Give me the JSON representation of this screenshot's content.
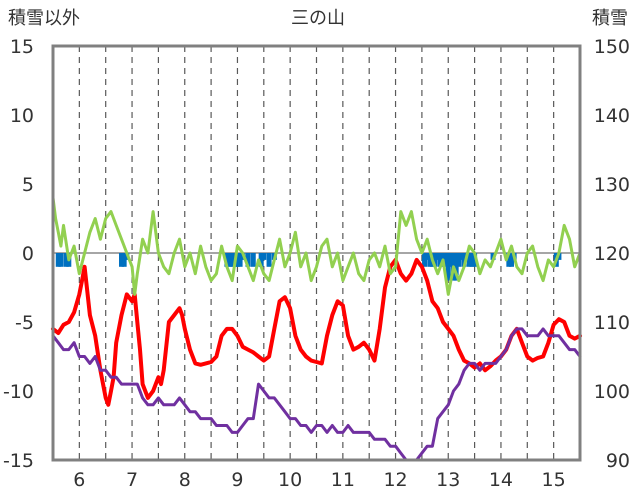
{
  "chart_data": {
    "type": "line",
    "title": "三の山",
    "ylabel_left": "積雪以外",
    "ylabel_right": "積雪",
    "ylim_left": [
      -15,
      15
    ],
    "ylim_right": [
      90,
      150
    ],
    "yticks_left": [
      15,
      10,
      5,
      0,
      -5,
      -10,
      -15
    ],
    "yticks_right": [
      150,
      140,
      130,
      120,
      110,
      100,
      90
    ],
    "xlim": [
      5.5,
      15.5
    ],
    "xticks": [
      6,
      7,
      8,
      9,
      10,
      11,
      12,
      13,
      14,
      15
    ],
    "grid": "vertical dashed",
    "series": [
      {
        "color": "#ff0000",
        "axis": "left",
        "x": [
          5.5,
          5.6,
          5.7,
          5.8,
          5.9,
          6.0,
          6.05,
          6.1,
          6.2,
          6.3,
          6.4,
          6.5,
          6.55,
          6.6,
          6.65,
          6.7,
          6.8,
          6.9,
          7.0,
          7.05,
          7.1,
          7.15,
          7.2,
          7.3,
          7.4,
          7.5,
          7.55,
          7.6,
          7.7,
          7.8,
          7.9,
          7.95,
          8.0,
          8.1,
          8.2,
          8.3,
          8.4,
          8.5,
          8.6,
          8.7,
          8.8,
          8.9,
          9.0,
          9.1,
          9.2,
          9.3,
          9.4,
          9.5,
          9.6,
          9.7,
          9.8,
          9.9,
          10.0,
          10.1,
          10.2,
          10.3,
          10.4,
          10.5,
          10.6,
          10.7,
          10.8,
          10.9,
          11.0,
          11.1,
          11.2,
          11.3,
          11.4,
          11.5,
          11.6,
          11.7,
          11.8,
          11.9,
          12.0,
          12.1,
          12.2,
          12.3,
          12.4,
          12.5,
          12.6,
          12.7,
          12.8,
          12.9,
          13.0,
          13.1,
          13.2,
          13.3,
          13.4,
          13.5,
          13.6,
          13.7,
          13.8,
          13.9,
          14.0,
          14.1,
          14.2,
          14.3,
          14.4,
          14.5,
          14.6,
          14.7,
          14.8,
          14.9,
          15.0,
          15.1,
          15.2,
          15.3,
          15.4,
          15.5
        ],
        "values": [
          -5.5,
          -5.8,
          -5.2,
          -5.0,
          -4.3,
          -3.0,
          -2.0,
          -1.0,
          -4.5,
          -6.0,
          -8.5,
          -10.5,
          -11.0,
          -10.0,
          -9.0,
          -6.5,
          -4.5,
          -3.0,
          -3.5,
          -3.0,
          -5.0,
          -7.0,
          -9.5,
          -10.5,
          -10.0,
          -9.0,
          -9.5,
          -8.5,
          -5.0,
          -4.5,
          -4.0,
          -4.5,
          -5.5,
          -7.0,
          -8.0,
          -8.1,
          -8.0,
          -7.9,
          -7.5,
          -6.0,
          -5.5,
          -5.5,
          -6.0,
          -6.8,
          -7.0,
          -7.2,
          -7.5,
          -7.8,
          -7.5,
          -5.5,
          -3.5,
          -3.2,
          -4.0,
          -6.0,
          -7.0,
          -7.5,
          -7.8,
          -7.9,
          -8.0,
          -6.0,
          -4.5,
          -3.5,
          -3.8,
          -6.0,
          -7.0,
          -6.8,
          -6.5,
          -7.0,
          -7.8,
          -5.5,
          -2.5,
          -1.0,
          -0.5,
          -1.5,
          -2.0,
          -1.5,
          -0.5,
          -1.0,
          -2.0,
          -3.5,
          -4.0,
          -5.0,
          -5.5,
          -6.0,
          -7.0,
          -7.8,
          -8.0,
          -8.3,
          -8.0,
          -8.5,
          -8.2,
          -7.8,
          -7.5,
          -7.0,
          -6.0,
          -5.5,
          -6.5,
          -7.5,
          -7.8,
          -7.6,
          -7.5,
          -6.5,
          -5.2,
          -4.8,
          -5.0,
          -6.0,
          -6.2,
          -6.0
        ]
      },
      {
        "color": "#92d050",
        "axis": "left",
        "x": [
          5.5,
          5.55,
          5.6,
          5.65,
          5.7,
          5.8,
          5.9,
          6.0,
          6.1,
          6.2,
          6.3,
          6.4,
          6.5,
          6.6,
          6.7,
          6.8,
          6.9,
          7.0,
          7.05,
          7.1,
          7.2,
          7.3,
          7.4,
          7.5,
          7.6,
          7.7,
          7.8,
          7.9,
          8.0,
          8.1,
          8.2,
          8.3,
          8.4,
          8.5,
          8.6,
          8.7,
          8.8,
          8.9,
          9.0,
          9.1,
          9.2,
          9.3,
          9.4,
          9.5,
          9.6,
          9.7,
          9.8,
          9.9,
          10.0,
          10.1,
          10.2,
          10.3,
          10.4,
          10.5,
          10.6,
          10.7,
          10.8,
          10.9,
          11.0,
          11.1,
          11.2,
          11.3,
          11.4,
          11.5,
          11.6,
          11.7,
          11.8,
          11.9,
          12.0,
          12.1,
          12.2,
          12.3,
          12.4,
          12.5,
          12.6,
          12.7,
          12.8,
          12.9,
          13.0,
          13.1,
          13.2,
          13.3,
          13.4,
          13.5,
          13.6,
          13.7,
          13.8,
          13.9,
          14.0,
          14.1,
          14.2,
          14.3,
          14.4,
          14.5,
          14.6,
          14.7,
          14.8,
          14.9,
          15.0,
          15.1,
          15.2,
          15.3,
          15.4,
          15.5
        ],
        "values": [
          4.0,
          2.5,
          1.5,
          0.5,
          2.0,
          -0.5,
          0.5,
          -1.5,
          0.0,
          1.5,
          2.5,
          1.0,
          2.5,
          3.0,
          2.0,
          1.0,
          0.0,
          -1.0,
          -3.0,
          -1.5,
          1.0,
          0.0,
          3.0,
          0.0,
          -1.0,
          -1.5,
          0.0,
          1.0,
          -1.0,
          0.0,
          -1.5,
          0.5,
          -1.0,
          -2.0,
          -1.5,
          0.5,
          -1.0,
          -2.0,
          0.5,
          0.0,
          -1.0,
          -2.0,
          -0.5,
          -1.5,
          -2.0,
          -0.5,
          1.0,
          -1.0,
          0.0,
          1.5,
          -1.0,
          0.0,
          -2.0,
          -1.0,
          0.5,
          1.0,
          -1.0,
          0.0,
          -2.0,
          -1.0,
          0.0,
          -1.5,
          -2.0,
          -0.5,
          0.0,
          -1.0,
          0.5,
          -1.5,
          -1.0,
          3.0,
          2.0,
          3.0,
          1.0,
          0.0,
          1.0,
          -0.5,
          -1.5,
          -0.5,
          -3.0,
          -1.0,
          -2.0,
          -1.0,
          0.5,
          0.0,
          -1.5,
          -0.5,
          -1.0,
          0.0,
          1.0,
          -0.5,
          0.5,
          -1.0,
          -1.5,
          0.0,
          0.5,
          -1.0,
          -2.0,
          -0.5,
          -1.0,
          0.0,
          2.0,
          1.0,
          -1.0,
          0.0
        ]
      },
      {
        "color": "#7030a0",
        "axis": "right",
        "x": [
          5.5,
          5.6,
          5.7,
          5.8,
          5.9,
          6.0,
          6.1,
          6.2,
          6.3,
          6.4,
          6.5,
          6.6,
          6.7,
          6.8,
          6.9,
          7.0,
          7.1,
          7.2,
          7.3,
          7.4,
          7.5,
          7.6,
          7.7,
          7.8,
          7.9,
          8.0,
          8.1,
          8.2,
          8.3,
          8.4,
          8.5,
          8.6,
          8.7,
          8.8,
          8.9,
          9.0,
          9.1,
          9.2,
          9.3,
          9.4,
          9.5,
          9.6,
          9.7,
          9.8,
          9.9,
          10.0,
          10.1,
          10.2,
          10.3,
          10.4,
          10.5,
          10.6,
          10.7,
          10.8,
          10.9,
          11.0,
          11.1,
          11.2,
          11.3,
          11.4,
          11.5,
          11.6,
          11.7,
          11.8,
          11.9,
          12.0,
          12.1,
          12.2,
          12.3,
          12.4,
          12.5,
          12.6,
          12.7,
          12.8,
          12.9,
          13.0,
          13.1,
          13.2,
          13.3,
          13.4,
          13.5,
          13.6,
          13.7,
          13.8,
          13.9,
          14.0,
          14.1,
          14.2,
          14.3,
          14.4,
          14.5,
          14.6,
          14.7,
          14.8,
          14.9,
          15.0,
          15.1,
          15.2,
          15.3,
          15.4,
          15.5
        ],
        "values": [
          108,
          107,
          106,
          106,
          107,
          105,
          105,
          104,
          105,
          103,
          103,
          102,
          102,
          101,
          101,
          101,
          101,
          99,
          98,
          98,
          99,
          98,
          98,
          98,
          99,
          98,
          97,
          97,
          96,
          96,
          96,
          95,
          95,
          95,
          94,
          94,
          95,
          96,
          96,
          101,
          100,
          99,
          99,
          98,
          97,
          96,
          96,
          95,
          95,
          94,
          95,
          95,
          94,
          95,
          94,
          94,
          95,
          94,
          94,
          94,
          94,
          93,
          93,
          93,
          92,
          92,
          91,
          90,
          90,
          90,
          91,
          92,
          92,
          96,
          97,
          98,
          100,
          101,
          103,
          104,
          104,
          103,
          104,
          104,
          104,
          105,
          106,
          108,
          109,
          109,
          108,
          108,
          108,
          109,
          108,
          108,
          108,
          107,
          106,
          106,
          105
        ]
      },
      {
        "type": "bar",
        "color": "#0070c0",
        "axis": "left",
        "x": [
          5.6,
          5.65,
          5.75,
          5.8,
          6.8,
          6.85,
          6.9,
          8.8,
          8.85,
          8.9,
          8.95,
          9.0,
          9.05,
          9.1,
          9.2,
          9.3,
          9.45,
          9.5,
          9.6,
          9.7,
          12.55,
          12.6,
          12.65,
          12.7,
          12.75,
          12.8,
          12.85,
          12.9,
          12.95,
          13.0,
          13.05,
          13.1,
          13.15,
          13.2,
          13.25,
          13.3,
          13.4,
          13.45,
          13.5,
          13.85,
          14.15,
          14.2,
          14.25,
          15.05,
          15.1
        ],
        "values": [
          -1.0,
          -1.0,
          -1.0,
          -1.0,
          -1.0,
          -1.0,
          -0.5,
          -1.0,
          -1.0,
          -1.0,
          -1.0,
          -1.0,
          -1.0,
          -0.5,
          -1.0,
          -1.0,
          -1.0,
          -0.5,
          -1.0,
          -0.5,
          -1.0,
          -0.5,
          -1.0,
          -1.0,
          -1.0,
          -0.5,
          -1.0,
          -0.5,
          -1.0,
          -2.0,
          -1.0,
          -2.0,
          -2.0,
          -1.0,
          -0.5,
          -1.0,
          -1.0,
          -1.0,
          -1.0,
          -0.5,
          -1.0,
          -1.0,
          -0.5,
          -1.0,
          -0.5
        ]
      }
    ]
  }
}
